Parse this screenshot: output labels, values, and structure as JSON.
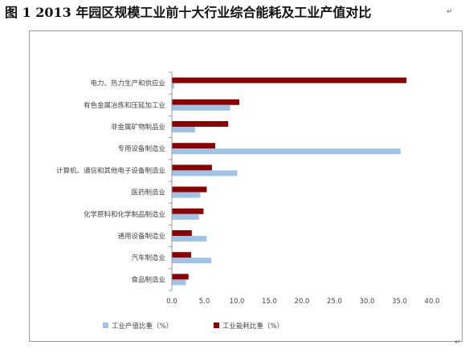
{
  "header": {
    "title": "图 1    2013 年园区规模工业前十大行业综合能耗及工业产值对比",
    "para_mark": "↵"
  },
  "footer": {
    "para_mark": "↵"
  },
  "chart_data": {
    "type": "bar",
    "orientation": "horizontal",
    "categories": [
      "电力、热力生产和供应业",
      "有色金属冶炼和压延加工业",
      "非金属矿物制品业",
      "专用设备制造业",
      "计算机、通信和其他电子设备制造业",
      "医药制造业",
      "化学原料和化学制品制造业",
      "通用设备制造业",
      "汽车制造业",
      "食品制造业"
    ],
    "series": [
      {
        "name": "工业产值比重（%）",
        "color": "#9dc3e6",
        "values": [
          0.3,
          8.9,
          3.5,
          35.1,
          10.0,
          4.3,
          4.1,
          5.3,
          6.0,
          2.1
        ]
      },
      {
        "name": "工业能耗比重（%）",
        "color": "#8b0000",
        "values": [
          36.0,
          10.3,
          8.6,
          6.6,
          6.1,
          5.3,
          4.8,
          3.0,
          2.9,
          2.5
        ]
      }
    ],
    "xlim": [
      0,
      40
    ],
    "x_ticks": [
      "0.0",
      "5.0",
      "10.0",
      "15.0",
      "20.0",
      "25.0",
      "30.0",
      "35.0",
      "40.0"
    ],
    "grid": false,
    "legend_position": "bottom",
    "title": "图 1    2013 年园区规模工业前十大行业综合能耗及工业产值对比"
  }
}
